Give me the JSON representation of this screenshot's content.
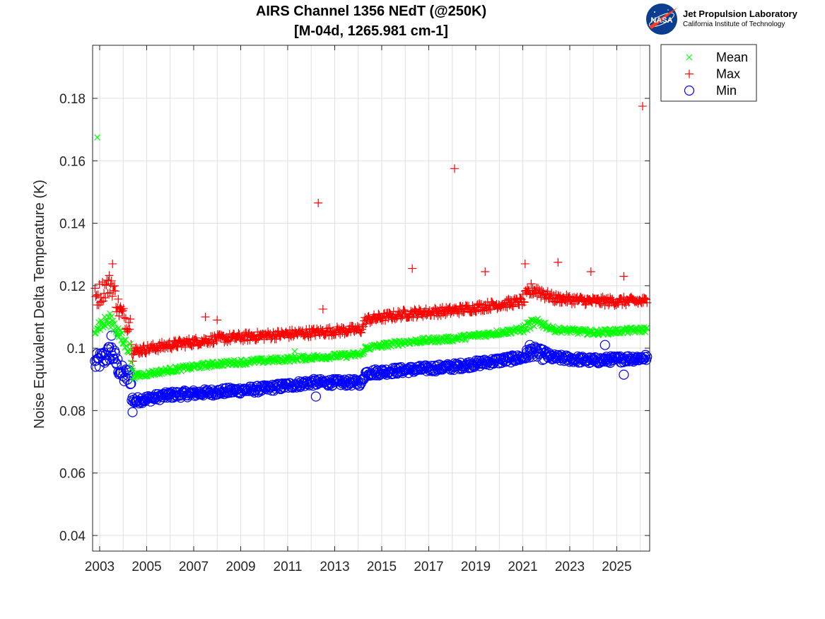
{
  "logo": {
    "mark": "NASA",
    "org": "Jet Propulsion Laboratory",
    "institute": "California Institute of Technology"
  },
  "chart_data": {
    "type": "scatter",
    "title": [
      "AIRS Channel 1356 NEdT (@250K)",
      "[M-04d, 1265.981 cm-1]"
    ],
    "xlabel": "",
    "ylabel": "Noise Equivalent Delta Temperature (K)",
    "xlim": [
      2002.7,
      2026.4
    ],
    "ylim": [
      0.035,
      0.197
    ],
    "x_ticks": [
      2003,
      2005,
      2007,
      2009,
      2011,
      2013,
      2015,
      2017,
      2019,
      2021,
      2023,
      2025
    ],
    "x_tick_labels": [
      "2003",
      "2005",
      "2007",
      "2009",
      "2011",
      "2013",
      "2015",
      "2017",
      "2019",
      "2021",
      "2023",
      "2025"
    ],
    "x_minor_ticks": [
      2004,
      2006,
      2008,
      2010,
      2012,
      2014,
      2016,
      2018,
      2020,
      2022,
      2024,
      2026
    ],
    "y_ticks": [
      0.04,
      0.06,
      0.08,
      0.1,
      0.12,
      0.14,
      0.16,
      0.18
    ],
    "y_tick_labels": [
      "0.04",
      "0.06",
      "0.08",
      "0.1",
      "0.12",
      "0.14",
      "0.16",
      "0.18"
    ],
    "grid": true,
    "legend": "outside top-right",
    "series": [
      {
        "name": "Mean",
        "marker": "x",
        "color": "#00ff00",
        "trend": [
          [
            2002.8,
            0.107
          ],
          [
            2003.2,
            0.108
          ],
          [
            2003.5,
            0.109
          ],
          [
            2003.8,
            0.105
          ],
          [
            2004.0,
            0.102
          ],
          [
            2004.3,
            0.1
          ],
          [
            2004.4,
            0.091
          ],
          [
            2006.0,
            0.093
          ],
          [
            2008.0,
            0.095
          ],
          [
            2010.0,
            0.096
          ],
          [
            2012.0,
            0.097
          ],
          [
            2014.15,
            0.098
          ],
          [
            2014.3,
            0.1
          ],
          [
            2016.0,
            0.102
          ],
          [
            2018.0,
            0.103
          ],
          [
            2020.0,
            0.105
          ],
          [
            2021.0,
            0.106
          ],
          [
            2021.4,
            0.108
          ],
          [
            2021.8,
            0.108
          ],
          [
            2022.3,
            0.106
          ],
          [
            2024.0,
            0.105
          ],
          [
            2026.3,
            0.106
          ]
        ],
        "outliers": [
          [
            2002.9,
            0.1675
          ],
          [
            2011.3,
            0.099
          ]
        ]
      },
      {
        "name": "Max",
        "marker": "+",
        "color": "#ff0000",
        "trend": [
          [
            2002.8,
            0.116
          ],
          [
            2003.2,
            0.119
          ],
          [
            2003.5,
            0.121
          ],
          [
            2003.8,
            0.113
          ],
          [
            2004.0,
            0.11
          ],
          [
            2004.3,
            0.108
          ],
          [
            2004.4,
            0.099
          ],
          [
            2006.0,
            0.101
          ],
          [
            2008.0,
            0.103
          ],
          [
            2010.0,
            0.104
          ],
          [
            2012.0,
            0.105
          ],
          [
            2014.15,
            0.106
          ],
          [
            2014.3,
            0.109
          ],
          [
            2016.0,
            0.111
          ],
          [
            2018.0,
            0.112
          ],
          [
            2020.0,
            0.114
          ],
          [
            2021.0,
            0.115
          ],
          [
            2021.4,
            0.119
          ],
          [
            2021.8,
            0.118
          ],
          [
            2022.3,
            0.116
          ],
          [
            2024.0,
            0.115
          ],
          [
            2026.3,
            0.115
          ]
        ],
        "outliers": [
          [
            2003.55,
            0.127
          ],
          [
            2007.5,
            0.11
          ],
          [
            2008.0,
            0.109
          ],
          [
            2012.3,
            0.1465
          ],
          [
            2012.5,
            0.1125
          ],
          [
            2016.3,
            0.1255
          ],
          [
            2018.1,
            0.1575
          ],
          [
            2019.4,
            0.1245
          ],
          [
            2021.1,
            0.127
          ],
          [
            2022.5,
            0.1275
          ],
          [
            2023.9,
            0.1245
          ],
          [
            2025.3,
            0.123
          ],
          [
            2026.1,
            0.1775
          ]
        ]
      },
      {
        "name": "Min",
        "marker": "o",
        "color": "#0000ff",
        "trend": [
          [
            2002.8,
            0.095
          ],
          [
            2003.2,
            0.097
          ],
          [
            2003.5,
            0.099
          ],
          [
            2003.8,
            0.094
          ],
          [
            2004.0,
            0.091
          ],
          [
            2004.3,
            0.091
          ],
          [
            2004.4,
            0.083
          ],
          [
            2006.0,
            0.085
          ],
          [
            2008.0,
            0.086
          ],
          [
            2010.0,
            0.087
          ],
          [
            2012.0,
            0.089
          ],
          [
            2014.15,
            0.089
          ],
          [
            2014.3,
            0.092
          ],
          [
            2016.0,
            0.093
          ],
          [
            2018.0,
            0.094
          ],
          [
            2020.0,
            0.096
          ],
          [
            2021.0,
            0.097
          ],
          [
            2021.4,
            0.099
          ],
          [
            2021.8,
            0.098
          ],
          [
            2022.3,
            0.097
          ],
          [
            2024.0,
            0.096
          ],
          [
            2026.3,
            0.097
          ]
        ],
        "outliers": [
          [
            2003.5,
            0.104
          ],
          [
            2004.4,
            0.0795
          ],
          [
            2012.2,
            0.0845
          ],
          [
            2021.3,
            0.101
          ],
          [
            2024.5,
            0.101
          ],
          [
            2025.3,
            0.0915
          ]
        ]
      }
    ]
  },
  "colors": {
    "axis": "#262626",
    "grid": "#dfdfdf",
    "nasa_blue": "#0b3d91",
    "nasa_red": "#fc3d21"
  }
}
